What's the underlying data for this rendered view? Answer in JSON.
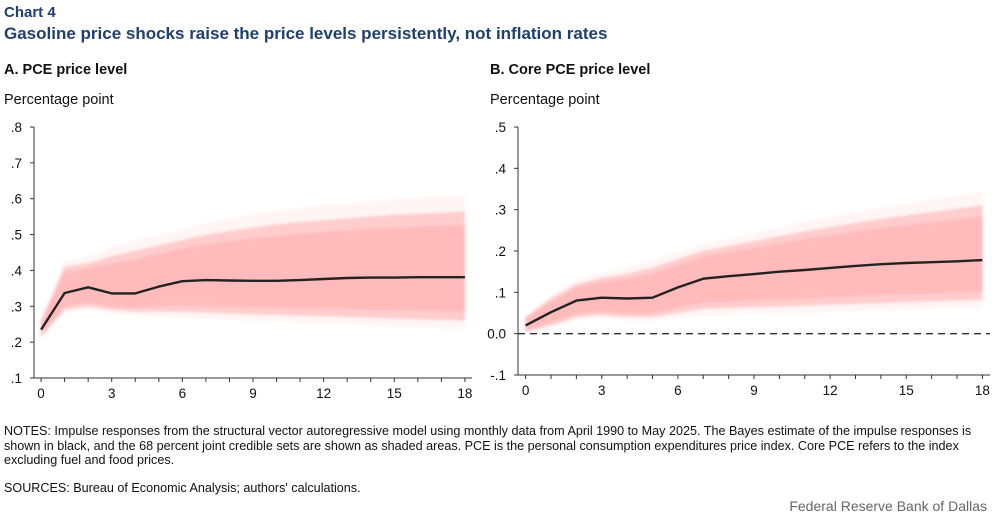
{
  "header": {
    "label": "Chart 4",
    "title": "Gasoline price shocks raise the price levels persistently, not inflation rates"
  },
  "colors": {
    "heading": "#1e3f6f",
    "band": "#ff9b9b",
    "line": "#222222",
    "zero_line": "#333333"
  },
  "chart_data": [
    {
      "type": "line",
      "panel_title": "A. PCE price level",
      "ylabel": "Percentage point",
      "xlabel": "",
      "x": [
        0,
        1,
        2,
        3,
        4,
        5,
        6,
        7,
        8,
        9,
        10,
        11,
        12,
        13,
        14,
        15,
        16,
        17,
        18
      ],
      "series": [
        {
          "name": "Bayes estimate",
          "values": [
            0.235,
            0.337,
            0.353,
            0.336,
            0.336,
            0.355,
            0.37,
            0.373,
            0.372,
            0.371,
            0.371,
            0.373,
            0.376,
            0.379,
            0.38,
            0.38,
            0.381,
            0.381,
            0.381
          ]
        }
      ],
      "band": {
        "name": "68 percent joint credible sets",
        "lower": [
          0.215,
          0.29,
          0.3,
          0.29,
          0.285,
          0.285,
          0.285,
          0.282,
          0.28,
          0.278,
          0.276,
          0.274,
          0.272,
          0.27,
          0.268,
          0.266,
          0.264,
          0.262,
          0.26
        ],
        "upper": [
          0.26,
          0.41,
          0.42,
          0.44,
          0.455,
          0.47,
          0.485,
          0.5,
          0.51,
          0.52,
          0.528,
          0.535,
          0.54,
          0.545,
          0.55,
          0.555,
          0.558,
          0.561,
          0.565
        ]
      },
      "xticks": [
        0,
        3,
        6,
        9,
        12,
        15,
        18
      ],
      "xtick_labels": [
        "0",
        "3",
        "6",
        "9",
        "12",
        "15",
        "18"
      ],
      "yticks": [
        0.1,
        0.2,
        0.3,
        0.4,
        0.5,
        0.6,
        0.7,
        0.8
      ],
      "ytick_labels": [
        ".1",
        ".2",
        ".3",
        ".4",
        ".5",
        ".6",
        ".7",
        ".8"
      ],
      "ylim": [
        0.1,
        0.8
      ],
      "xlim": [
        -0.3,
        18.3
      ],
      "zero_line": false
    },
    {
      "type": "line",
      "panel_title": "B. Core PCE price level",
      "ylabel": "Percentage point",
      "xlabel": "",
      "x": [
        0,
        1,
        2,
        3,
        4,
        5,
        6,
        7,
        8,
        9,
        10,
        11,
        12,
        13,
        14,
        15,
        16,
        17,
        18
      ],
      "series": [
        {
          "name": "Bayes estimate",
          "values": [
            0.02,
            0.052,
            0.08,
            0.087,
            0.085,
            0.087,
            0.112,
            0.133,
            0.139,
            0.144,
            0.15,
            0.154,
            0.159,
            0.164,
            0.168,
            0.171,
            0.173,
            0.175,
            0.178
          ]
        }
      ],
      "band": {
        "name": "68 percent joint credible sets",
        "lower": [
          0.005,
          0.02,
          0.04,
          0.045,
          0.04,
          0.04,
          0.05,
          0.06,
          0.062,
          0.064,
          0.066,
          0.068,
          0.07,
          0.072,
          0.074,
          0.076,
          0.078,
          0.08,
          0.082
        ],
        "upper": [
          0.04,
          0.085,
          0.12,
          0.135,
          0.145,
          0.16,
          0.18,
          0.2,
          0.212,
          0.224,
          0.236,
          0.248,
          0.258,
          0.268,
          0.278,
          0.286,
          0.294,
          0.302,
          0.31
        ]
      },
      "xticks": [
        0,
        3,
        6,
        9,
        12,
        15,
        18
      ],
      "xtick_labels": [
        "0",
        "3",
        "6",
        "9",
        "12",
        "15",
        "18"
      ],
      "yticks": [
        -0.1,
        0.0,
        0.1,
        0.2,
        0.3,
        0.4,
        0.5
      ],
      "ytick_labels": [
        "-.1",
        "0.0",
        ".1",
        ".2",
        ".3",
        ".4",
        ".5"
      ],
      "ylim": [
        -0.1,
        0.5
      ],
      "xlim": [
        -0.3,
        18.3
      ],
      "zero_line": true
    }
  ],
  "notes": "NOTES: Impulse responses from the structural vector autoregressive model using monthly data from April 1990 to May 2025. The Bayes estimate of the impulse responses is shown in black, and the 68 percent joint credible sets are shown as shaded areas. PCE is the personal consumption expenditures price index. Core PCE refers to the index excluding fuel and food prices.",
  "sources": "SOURCES: Bureau of Economic Analysis; authors' calculations.",
  "credit": "Federal Reserve Bank of Dallas"
}
